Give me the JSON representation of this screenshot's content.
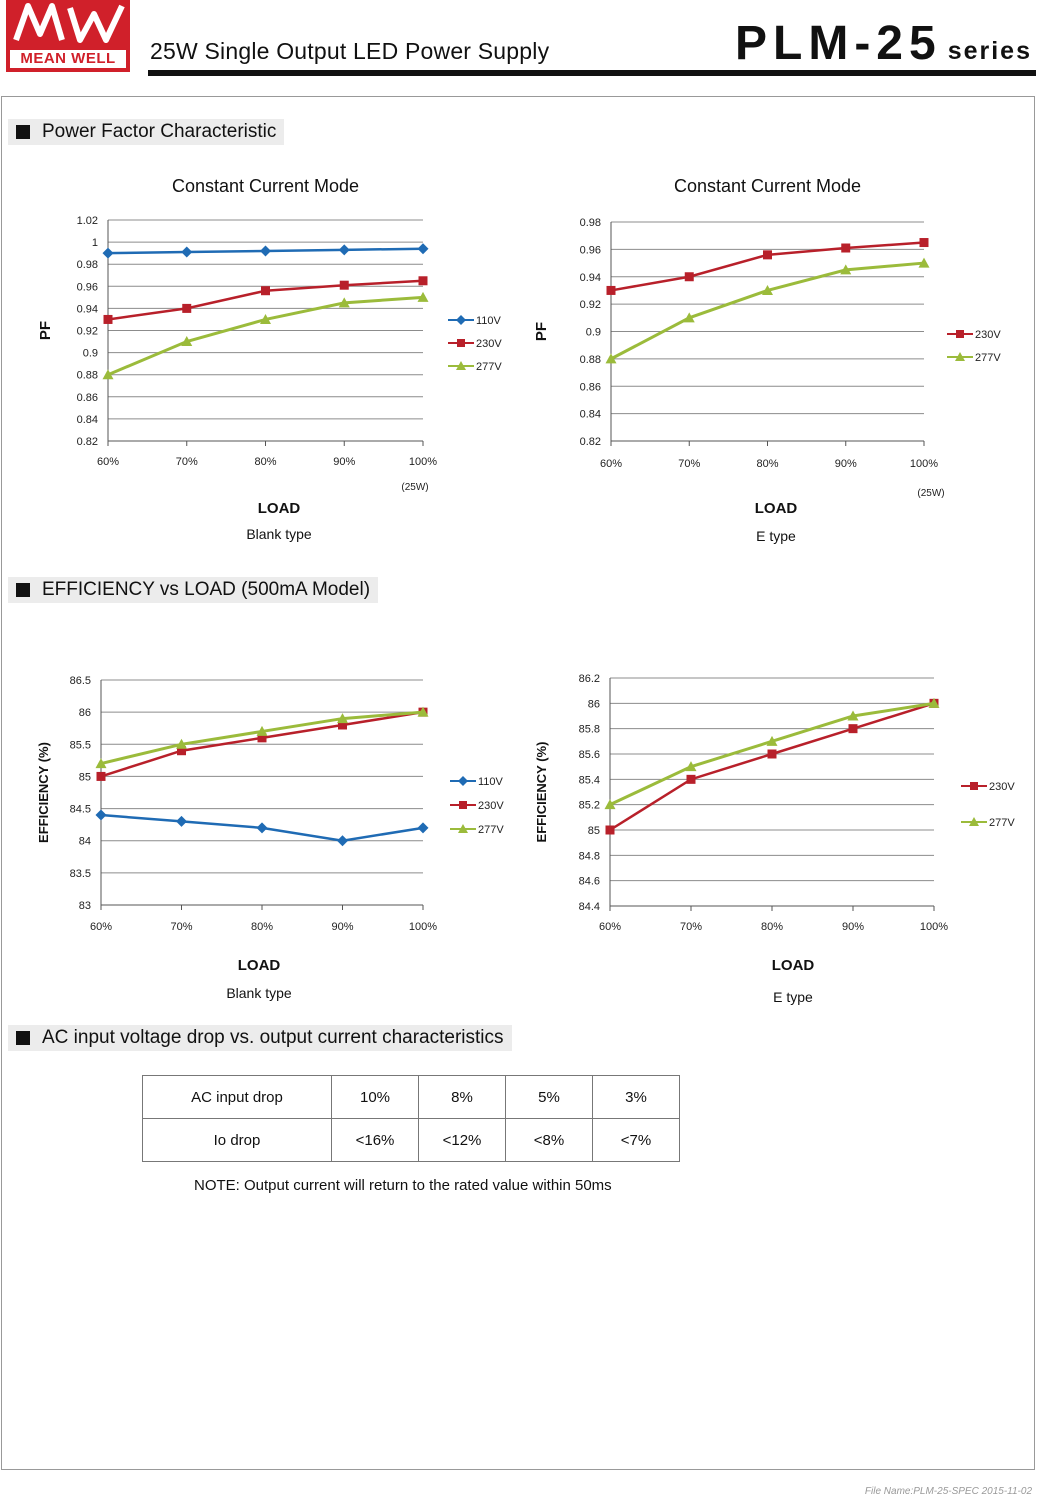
{
  "header": {
    "logo_text": "MEAN WELL",
    "logo_mark": "MW",
    "subtitle": "25W Single Output LED Power Supply",
    "model": "PLM-25",
    "series_suffix": "series"
  },
  "sections": {
    "pf": "Power Factor Characteristic",
    "eff": "EFFICIENCY vs LOAD (500mA Model)",
    "ac": "AC input voltage drop vs. output current characteristics"
  },
  "colors": {
    "110V": "#1f6bb4",
    "230V": "#b8202a",
    "277V": "#9bbb3b"
  },
  "chart_data": [
    {
      "type": "line",
      "title": "Constant Current Mode",
      "xlabel": "LOAD",
      "caption": "Blank type",
      "ylabel": "PF",
      "x_note": "(25W)",
      "categories": [
        "60%",
        "70%",
        "80%",
        "90%",
        "100%"
      ],
      "ylim": [
        0.82,
        1.02
      ],
      "yticks": [
        "0.82",
        "0.84",
        "0.86",
        "0.88",
        "0.9",
        "0.92",
        "0.94",
        "0.96",
        "0.98",
        "1",
        "1.02"
      ],
      "grid": true,
      "legend": "right",
      "series": [
        {
          "name": "110V",
          "marker": "diamond",
          "values": [
            0.99,
            0.991,
            0.992,
            0.993,
            0.994
          ]
        },
        {
          "name": "230V",
          "marker": "square",
          "values": [
            0.93,
            0.94,
            0.956,
            0.961,
            0.965
          ]
        },
        {
          "name": "277V",
          "marker": "triangle",
          "values": [
            0.88,
            0.91,
            0.93,
            0.945,
            0.95
          ]
        }
      ]
    },
    {
      "type": "line",
      "title": "Constant Current Mode",
      "xlabel": "LOAD",
      "caption": "E type",
      "ylabel": "PF",
      "x_note": "(25W)",
      "categories": [
        "60%",
        "70%",
        "80%",
        "90%",
        "100%"
      ],
      "ylim": [
        0.82,
        0.98
      ],
      "yticks": [
        "0.82",
        "0.84",
        "0.86",
        "0.88",
        "0.9",
        "0.92",
        "0.94",
        "0.96",
        "0.98"
      ],
      "grid": true,
      "legend": "right",
      "series": [
        {
          "name": "230V",
          "marker": "square",
          "values": [
            0.93,
            0.94,
            0.956,
            0.961,
            0.965
          ]
        },
        {
          "name": "277V",
          "marker": "triangle",
          "values": [
            0.88,
            0.91,
            0.93,
            0.945,
            0.95
          ]
        }
      ]
    },
    {
      "type": "line",
      "xlabel": "LOAD",
      "caption": "Blank type",
      "ylabel": "EFFICIENCY (%)",
      "categories": [
        "60%",
        "70%",
        "80%",
        "90%",
        "100%"
      ],
      "ylim": [
        83,
        86.5
      ],
      "yticks": [
        "83",
        "83.5",
        "84",
        "84.5",
        "85",
        "85.5",
        "86",
        "86.5"
      ],
      "grid": true,
      "legend": "right",
      "series": [
        {
          "name": "110V",
          "marker": "diamond",
          "values": [
            84.4,
            84.3,
            84.2,
            84.0,
            84.2
          ]
        },
        {
          "name": "230V",
          "marker": "square",
          "values": [
            85.0,
            85.4,
            85.6,
            85.8,
            86.0
          ]
        },
        {
          "name": "277V",
          "marker": "triangle",
          "values": [
            85.2,
            85.5,
            85.7,
            85.9,
            86.0
          ]
        }
      ]
    },
    {
      "type": "line",
      "xlabel": "LOAD",
      "caption": "E type",
      "ylabel": "EFFICIENCY (%)",
      "categories": [
        "60%",
        "70%",
        "80%",
        "90%",
        "100%"
      ],
      "ylim": [
        84.4,
        86.2
      ],
      "yticks": [
        "84.4",
        "84.6",
        "84.8",
        "85",
        "85.2",
        "85.4",
        "85.6",
        "85.8",
        "86",
        "86.2"
      ],
      "grid": true,
      "legend": "right",
      "series": [
        {
          "name": "230V",
          "marker": "square",
          "values": [
            85.0,
            85.4,
            85.6,
            85.8,
            86.0
          ]
        },
        {
          "name": "277V",
          "marker": "triangle",
          "values": [
            85.2,
            85.5,
            85.7,
            85.9,
            86.0
          ]
        }
      ]
    }
  ],
  "ac_table": {
    "row1_label": "AC input drop",
    "row1": [
      "10%",
      "8%",
      "5%",
      "3%"
    ],
    "row2_label": "Io drop",
    "row2": [
      "<16%",
      "<12%",
      "<8%",
      "<7%"
    ]
  },
  "note": "NOTE: Output current will return to the rated value within 50ms",
  "footer": "File Name:PLM-25-SPEC   2015-11-02"
}
